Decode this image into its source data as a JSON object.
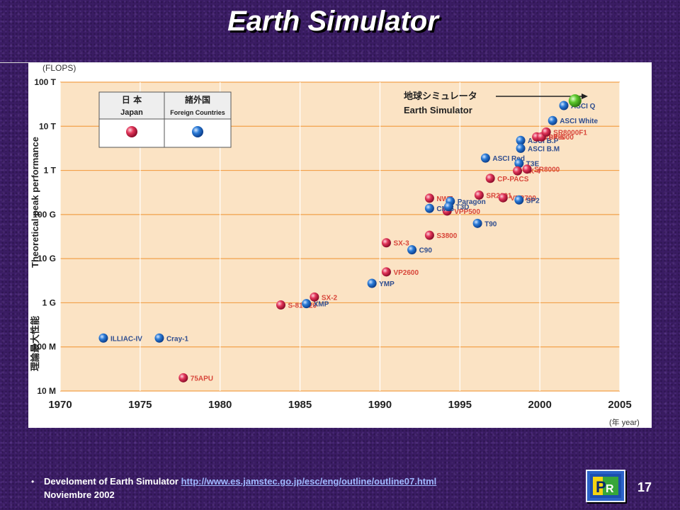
{
  "slide": {
    "title": "Earth Simulator",
    "number": "17"
  },
  "footer": {
    "bullet": "•",
    "text": "Develoment of Earth Simulator",
    "link": "http://www.es.jamstec.go.jp/esc/eng/outline/outline07.html",
    "date": "Noviembre 2002"
  },
  "logo_icon": "pr-logo-icon",
  "chart_data": {
    "type": "scatter",
    "y_unit": "(FLOPS)",
    "ylabel": "Theoretical peak performance",
    "ylabel_ja": "理論最大性能",
    "x_unit": "(年 year)",
    "x_ticks": [
      "1970",
      "1975",
      "1980",
      "1985",
      "1990",
      "1995",
      "2000",
      "2005"
    ],
    "xlim": [
      1970,
      2005
    ],
    "y_ticks": [
      "10 M",
      "100 M",
      "1 G",
      "10 G",
      "100 G",
      "1 T",
      "10 T",
      "100 T"
    ],
    "y_scale": "log",
    "ylim_log10": [
      7,
      14
    ],
    "grid": true,
    "colors": {
      "background": "#fbe3c4",
      "gridline": "#f2a14a",
      "japan": "#d81b46",
      "foreign": "#1f6fc9",
      "earth_simulator": "#57c22a",
      "label": "#d8463a",
      "label_foreign": "#2f4d8f"
    },
    "legend": {
      "position": "top-left",
      "japan_ja": "日 本",
      "japan_en": "Japan",
      "foreign_ja": "諸外国",
      "foreign_en": "Foreign Countries"
    },
    "annotation": {
      "ja": "地球シミュレータ",
      "en": "Earth Simulator"
    },
    "points": [
      {
        "label": "ILLIAC-IV",
        "year": 1972.7,
        "log10_flops": 8.2,
        "origin": "foreign"
      },
      {
        "label": "Cray-1",
        "year": 1976.2,
        "log10_flops": 8.2,
        "origin": "foreign"
      },
      {
        "label": "75APU",
        "year": 1977.7,
        "log10_flops": 7.3,
        "origin": "japan"
      },
      {
        "label": "S-810/20",
        "year": 1983.8,
        "log10_flops": 8.95,
        "origin": "japan"
      },
      {
        "label": "XMP",
        "year": 1985.4,
        "log10_flops": 8.98,
        "origin": "foreign"
      },
      {
        "label": "SX-2",
        "year": 1985.9,
        "log10_flops": 9.13,
        "origin": "japan"
      },
      {
        "label": "YMP",
        "year": 1989.5,
        "log10_flops": 9.44,
        "origin": "foreign"
      },
      {
        "label": "VP2600",
        "year": 1990.4,
        "log10_flops": 9.7,
        "origin": "japan"
      },
      {
        "label": "SX-3",
        "year": 1990.4,
        "log10_flops": 10.36,
        "origin": "japan"
      },
      {
        "label": "C90",
        "year": 1992.0,
        "log10_flops": 10.2,
        "origin": "foreign"
      },
      {
        "label": "S3800",
        "year": 1993.1,
        "log10_flops": 10.53,
        "origin": "japan"
      },
      {
        "label": "VPP500",
        "year": 1994.2,
        "log10_flops": 11.08,
        "origin": "japan"
      },
      {
        "label": "CM-5",
        "year": 1993.1,
        "log10_flops": 11.14,
        "origin": "foreign"
      },
      {
        "label": "NWT",
        "year": 1993.1,
        "log10_flops": 11.37,
        "origin": "japan"
      },
      {
        "label": "Paragon",
        "year": 1994.4,
        "log10_flops": 11.3,
        "origin": "foreign"
      },
      {
        "label": "T3D",
        "year": 1994.3,
        "log10_flops": 11.18,
        "origin": "foreign"
      },
      {
        "label": "SR2201",
        "year": 1996.2,
        "log10_flops": 11.44,
        "origin": "japan"
      },
      {
        "label": "T90",
        "year": 1996.1,
        "log10_flops": 10.8,
        "origin": "foreign"
      },
      {
        "label": "CP-PACS",
        "year": 1996.9,
        "log10_flops": 11.82,
        "origin": "japan"
      },
      {
        "label": "ASCI Red",
        "year": 1996.6,
        "log10_flops": 12.28,
        "origin": "foreign"
      },
      {
        "label": "VPP700",
        "year": 1997.7,
        "log10_flops": 11.38,
        "origin": "japan"
      },
      {
        "label": "SP2",
        "year": 1998.7,
        "log10_flops": 11.33,
        "origin": "foreign"
      },
      {
        "label": "T3E",
        "year": 1998.7,
        "log10_flops": 12.16,
        "origin": "foreign"
      },
      {
        "label": "SX-4",
        "year": 1998.6,
        "log10_flops": 11.99,
        "origin": "japan"
      },
      {
        "label": "SR8000",
        "year": 1999.2,
        "log10_flops": 12.03,
        "origin": "japan"
      },
      {
        "label": "ASCI B.P",
        "year": 1998.8,
        "log10_flops": 12.68,
        "origin": "foreign"
      },
      {
        "label": "ASCI B.M",
        "year": 1998.8,
        "log10_flops": 12.5,
        "origin": "foreign"
      },
      {
        "label": "VPP5000",
        "year": 1999.8,
        "log10_flops": 12.76,
        "origin": "japan"
      },
      {
        "label": "SX-5",
        "year": 2000.1,
        "log10_flops": 12.76,
        "origin": "japan"
      },
      {
        "label": "SR8000F1",
        "year": 2000.4,
        "log10_flops": 12.87,
        "origin": "japan"
      },
      {
        "label": "ASCI White",
        "year": 2000.8,
        "log10_flops": 13.13,
        "origin": "foreign"
      },
      {
        "label": "ASCI Q",
        "year": 2001.5,
        "log10_flops": 13.47,
        "origin": "foreign"
      },
      {
        "label": "",
        "year": 2002.2,
        "log10_flops": 13.58,
        "origin": "earth_simulator"
      }
    ]
  }
}
